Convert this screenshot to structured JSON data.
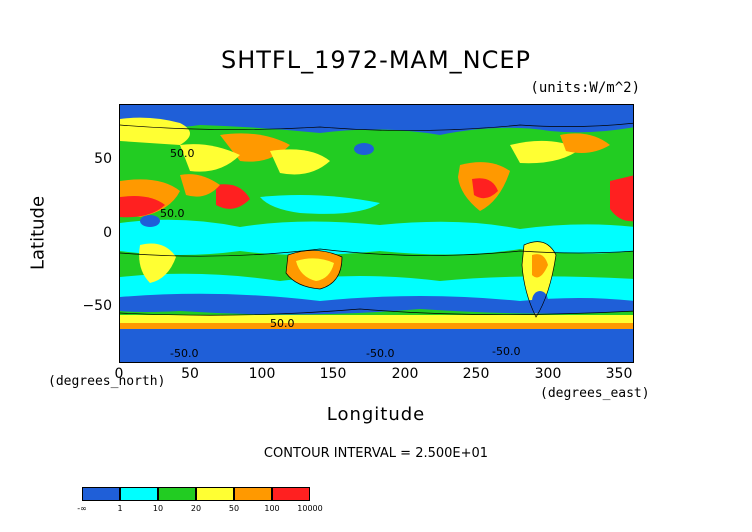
{
  "title": "SHTFL_1972-MAM_NCEP",
  "units_label": "(units:W/m^2)",
  "axes": {
    "y_label": "Latitude",
    "y_unit": "(degrees_north)",
    "y_ticks": [
      "50",
      "0",
      "−50"
    ],
    "x_label": "Longitude",
    "x_unit": "(degrees_east)",
    "x_ticks": [
      "0",
      "50",
      "100",
      "150",
      "200",
      "250",
      "300",
      "350"
    ]
  },
  "contour_interval": "CONTOUR INTERVAL = 2.500E+01",
  "contour_labels": [
    "-50.0",
    "-50.0",
    "50.0",
    "50.0",
    "50.0",
    "-50.0"
  ],
  "legend": {
    "colors": [
      "#1f5fd8",
      "#00ffff",
      "#22cc22",
      "#ffff33",
      "#ff9900",
      "#ff2020"
    ],
    "labels": [
      "-∞",
      "1",
      "10",
      "20",
      "50",
      "100",
      "10000"
    ]
  }
}
